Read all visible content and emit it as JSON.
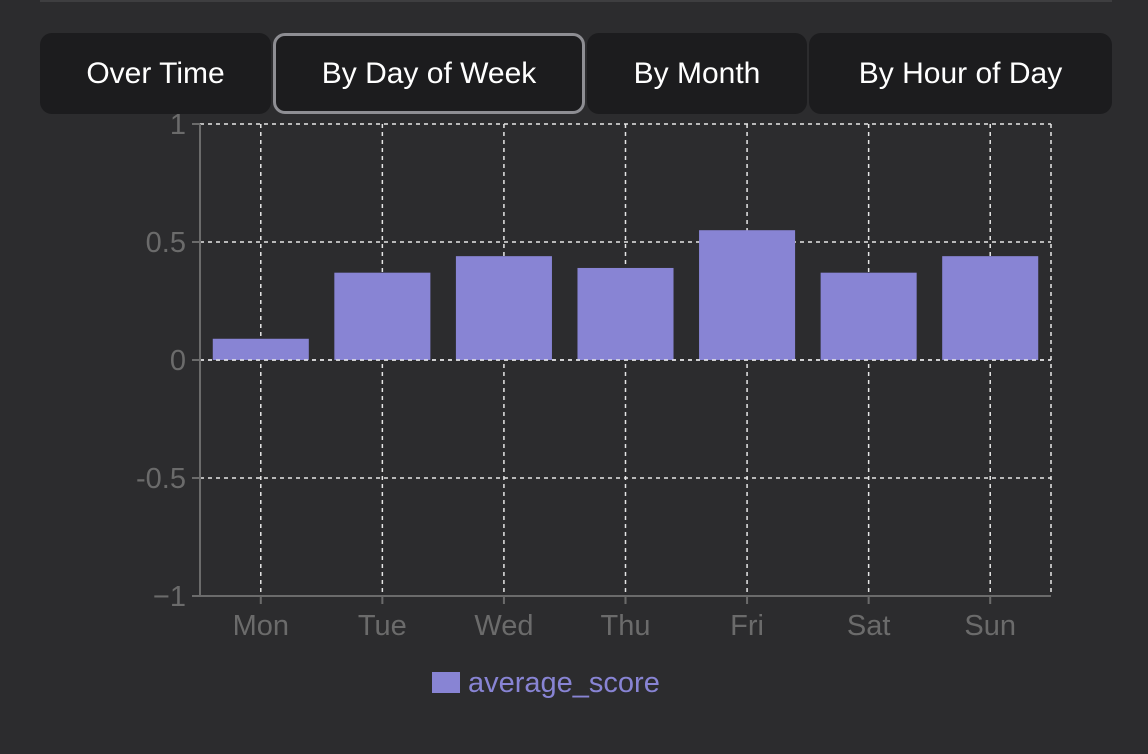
{
  "tabs": [
    {
      "label": "Over Time",
      "active": false
    },
    {
      "label": "By Day of Week",
      "active": true
    },
    {
      "label": "By Month",
      "active": false
    },
    {
      "label": "By Hour of Day",
      "active": false
    }
  ],
  "colors": {
    "bar": "#8884d4",
    "legend_text": "#8884d4",
    "tick_text": "#6b6b6b",
    "grid": "#e6e6e6",
    "axis": "#6b6b6b",
    "tab_bg": "#1c1c1e",
    "page_bg": "#2c2c2e"
  },
  "chart_data": {
    "type": "bar",
    "categories": [
      "Mon",
      "Tue",
      "Wed",
      "Thu",
      "Fri",
      "Sat",
      "Sun"
    ],
    "series": [
      {
        "name": "average_score",
        "values": [
          0.09,
          0.37,
          0.44,
          0.39,
          0.55,
          0.37,
          0.44
        ]
      }
    ],
    "ylim": [
      -1,
      1
    ],
    "yticks": [
      -1,
      -0.5,
      0,
      0.5,
      1
    ],
    "ytick_labels": [
      "−1",
      "-0.5",
      "0",
      "0.5",
      "1"
    ],
    "grid": true,
    "legend_position": "bottom",
    "xlabel": "",
    "ylabel": "",
    "title": ""
  }
}
